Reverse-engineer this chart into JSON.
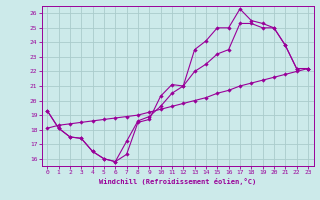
{
  "xlabel": "Windchill (Refroidissement éolien,°C)",
  "bg_color": "#cceaea",
  "grid_color": "#aacccc",
  "line_color": "#990099",
  "xlim": [
    -0.5,
    23.5
  ],
  "ylim": [
    15.5,
    26.5
  ],
  "xticks": [
    0,
    1,
    2,
    3,
    4,
    5,
    6,
    7,
    8,
    9,
    10,
    11,
    12,
    13,
    14,
    15,
    16,
    17,
    18,
    19,
    20,
    21,
    22,
    23
  ],
  "yticks": [
    16,
    17,
    18,
    19,
    20,
    21,
    22,
    23,
    24,
    25,
    26
  ],
  "line1_x": [
    0,
    1,
    2,
    3,
    4,
    5,
    6,
    7,
    8,
    9,
    10,
    11,
    12,
    13,
    14,
    15,
    16,
    17,
    18,
    19,
    20,
    21,
    22,
    23
  ],
  "line1_y": [
    19.3,
    18.1,
    17.5,
    17.4,
    16.5,
    16.0,
    15.8,
    16.3,
    18.5,
    18.7,
    20.3,
    21.1,
    21.0,
    23.5,
    24.1,
    25.0,
    25.0,
    26.3,
    25.5,
    25.3,
    25.0,
    23.8,
    22.2,
    22.2
  ],
  "line2_x": [
    0,
    1,
    2,
    3,
    4,
    5,
    6,
    7,
    8,
    9,
    10,
    11,
    12,
    13,
    14,
    15,
    16,
    17,
    18,
    19,
    20,
    21,
    22,
    23
  ],
  "line2_y": [
    19.3,
    18.1,
    17.5,
    17.4,
    16.5,
    16.0,
    15.8,
    17.2,
    18.6,
    18.9,
    19.6,
    20.5,
    21.0,
    22.0,
    22.5,
    23.2,
    23.5,
    25.3,
    25.3,
    25.0,
    25.0,
    23.8,
    22.2,
    22.2
  ],
  "line3_x": [
    0,
    1,
    2,
    3,
    4,
    5,
    6,
    7,
    8,
    9,
    10,
    11,
    12,
    13,
    14,
    15,
    16,
    17,
    18,
    19,
    20,
    21,
    22,
    23
  ],
  "line3_y": [
    18.1,
    18.3,
    18.4,
    18.5,
    18.6,
    18.7,
    18.8,
    18.9,
    19.0,
    19.2,
    19.4,
    19.6,
    19.8,
    20.0,
    20.2,
    20.5,
    20.7,
    21.0,
    21.2,
    21.4,
    21.6,
    21.8,
    22.0,
    22.2
  ]
}
